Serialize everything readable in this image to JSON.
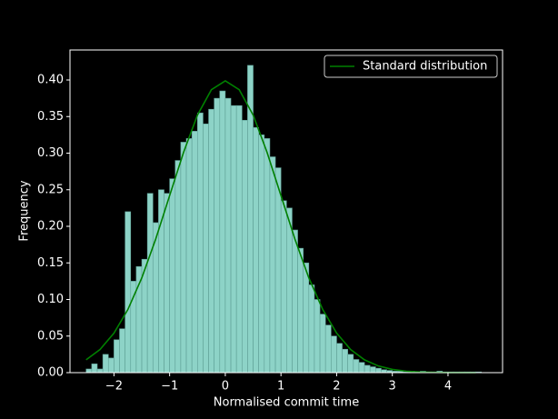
{
  "chart_data": {
    "type": "histogram",
    "xlabel": "Normalised commit time",
    "ylabel": "Frequency",
    "color": "#8dd3c7",
    "edgecolor": "#5e9f95",
    "bins": [
      -2.5,
      -2.4,
      -2.3,
      -2.2,
      -2.1,
      -2.0,
      -1.9,
      -1.8,
      -1.7,
      -1.6,
      -1.5,
      -1.4,
      -1.3,
      -1.2,
      -1.1,
      -1.0,
      -0.9,
      -0.8,
      -0.7,
      -0.6,
      -0.5,
      -0.4,
      -0.3,
      -0.2,
      -0.1,
      0.0,
      0.1,
      0.2,
      0.3,
      0.4,
      0.5,
      0.6,
      0.7,
      0.8,
      0.9,
      1.0,
      1.1,
      1.2,
      1.3,
      1.4,
      1.5,
      1.6,
      1.7,
      1.8,
      1.9,
      2.0,
      2.1,
      2.2,
      2.3,
      2.4,
      2.5,
      2.6,
      2.7,
      2.8,
      2.9,
      3.0,
      3.1,
      3.2,
      3.3,
      3.4,
      3.5,
      3.6,
      3.7,
      3.8,
      3.9,
      4.0,
      4.1,
      4.2,
      4.3,
      4.4,
      4.5,
      4.6
    ],
    "values": [
      0.005,
      0.012,
      0.005,
      0.025,
      0.02,
      0.045,
      0.06,
      0.22,
      0.125,
      0.145,
      0.155,
      0.245,
      0.205,
      0.25,
      0.245,
      0.265,
      0.29,
      0.315,
      0.32,
      0.33,
      0.355,
      0.34,
      0.36,
      0.375,
      0.385,
      0.375,
      0.365,
      0.365,
      0.345,
      0.42,
      0.335,
      0.325,
      0.32,
      0.295,
      0.28,
      0.235,
      0.225,
      0.195,
      0.17,
      0.15,
      0.12,
      0.1,
      0.08,
      0.065,
      0.05,
      0.04,
      0.032,
      0.025,
      0.018,
      0.014,
      0.01,
      0.008,
      0.006,
      0.004,
      0.003,
      0.002,
      0.002,
      0.001,
      0.002,
      0.001,
      0.002,
      0.001,
      0.001,
      0.002,
      0.001,
      0.001,
      0.001,
      0.001,
      0.001,
      0.001,
      0.001
    ],
    "line": {
      "name": "Standard distribution",
      "color": "#008000",
      "x": [
        -2.5,
        -2.25,
        -2.0,
        -1.75,
        -1.5,
        -1.25,
        -1.0,
        -0.75,
        -0.5,
        -0.25,
        0.0,
        0.25,
        0.5,
        0.75,
        1.0,
        1.25,
        1.5,
        1.75,
        2.0,
        2.25,
        2.5,
        2.75,
        3.0,
        3.25,
        3.5,
        3.75,
        4.0,
        4.25,
        4.5
      ],
      "values": [
        0.0175,
        0.0317,
        0.054,
        0.0863,
        0.1295,
        0.1826,
        0.242,
        0.3011,
        0.3521,
        0.3867,
        0.3989,
        0.3867,
        0.3521,
        0.3011,
        0.242,
        0.1826,
        0.1295,
        0.0863,
        0.054,
        0.0317,
        0.0175,
        0.0091,
        0.0044,
        0.002,
        0.0009,
        0.0004,
        0.0001,
        0.0001,
        0.0
      ]
    },
    "legend": "upper right",
    "xlim": [
      -2.79,
      4.98
    ],
    "ylim": [
      0,
      0.441
    ],
    "xticks": [
      {
        "value": -2,
        "label": "−2"
      },
      {
        "value": -1,
        "label": "−1"
      },
      0,
      1,
      2,
      3,
      4
    ],
    "yticks": [
      {
        "value": 0,
        "label": "0.00"
      },
      {
        "value": 0.05,
        "label": "0.05"
      },
      {
        "value": 0.1,
        "label": "0.10"
      },
      {
        "value": 0.15,
        "label": "0.15"
      },
      {
        "value": 0.2,
        "label": "0.20"
      },
      {
        "value": 0.25,
        "label": "0.25"
      },
      {
        "value": 0.3,
        "label": "0.30"
      },
      {
        "value": 0.35,
        "label": "0.35"
      },
      {
        "value": 0.4,
        "label": "0.40"
      }
    ]
  }
}
